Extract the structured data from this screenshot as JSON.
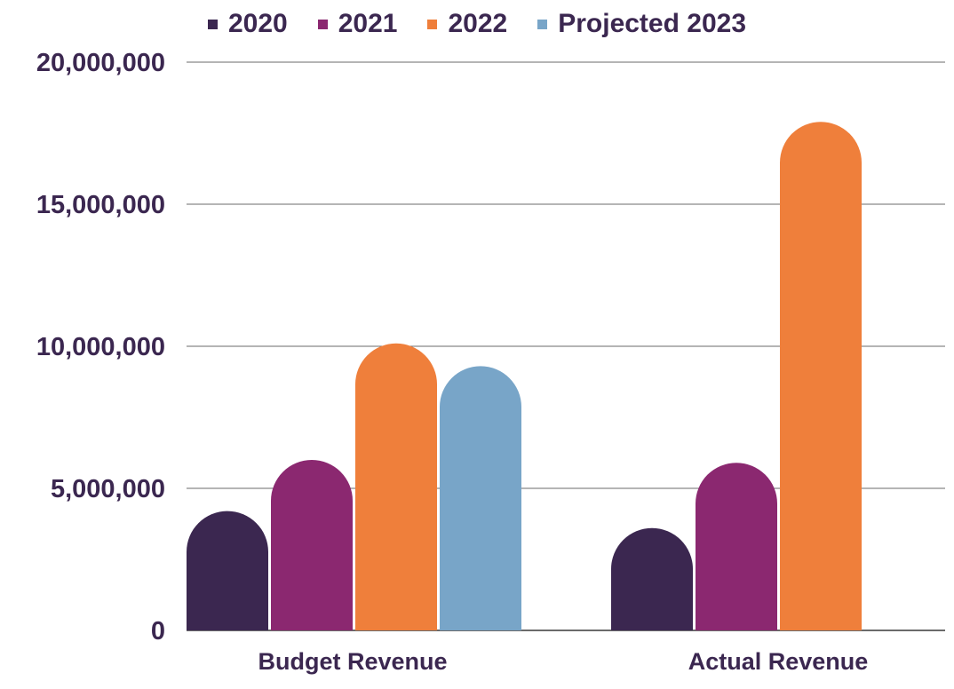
{
  "chart_data": {
    "type": "bar",
    "title": "",
    "xlabel": "",
    "ylabel": "",
    "categories": [
      "Budget Revenue",
      "Actual Revenue"
    ],
    "series": [
      {
        "name": "2020",
        "color": "#3b2750",
        "values": [
          4200000,
          3600000
        ]
      },
      {
        "name": "2021",
        "color": "#8b2870",
        "values": [
          6000000,
          5900000
        ]
      },
      {
        "name": "2022",
        "color": "#ef7f3b",
        "values": [
          10100000,
          17900000
        ]
      },
      {
        "name": "Projected 2023",
        "color": "#78a5c8",
        "values": [
          9300000,
          null
        ]
      }
    ],
    "ylim": [
      0,
      20000000
    ],
    "yticks": [
      "0",
      "5,000,000",
      "10,000,000",
      "15,000,000",
      "20,000,000"
    ],
    "ytick_values": [
      0,
      5000000,
      10000000,
      15000000,
      20000000
    ],
    "grid": true,
    "legend_position": "top-center",
    "bar_shape": "rounded-top"
  }
}
